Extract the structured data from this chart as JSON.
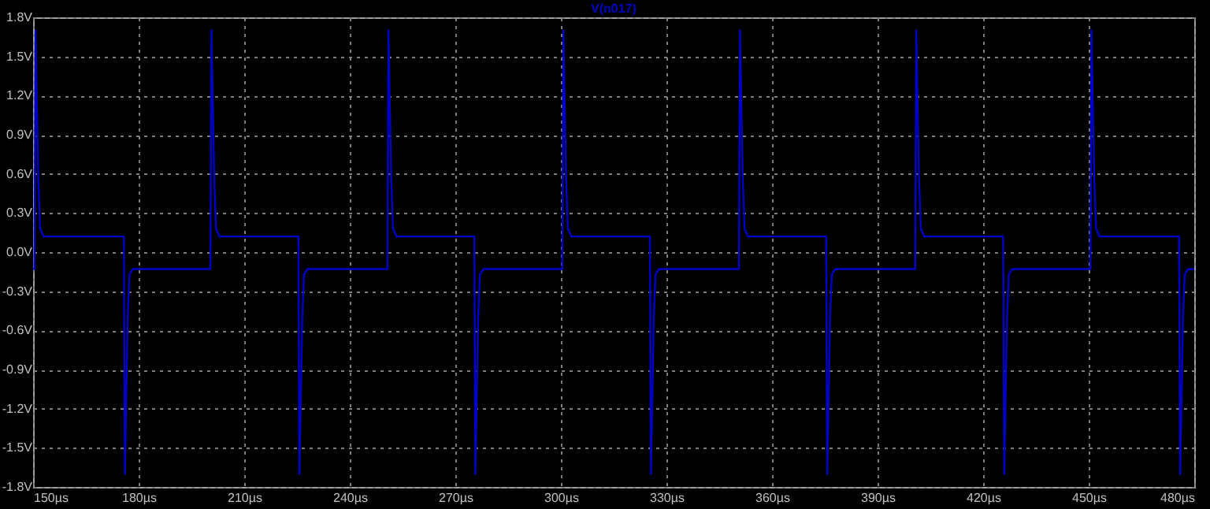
{
  "chart_data": {
    "type": "line",
    "legend": "top",
    "grid": true,
    "line_style": "solid",
    "marker": "none",
    "xlim": [
      150,
      480
    ],
    "xticks": [
      {
        "value": 150,
        "label": "150µs"
      },
      {
        "value": 180,
        "label": "180µs"
      },
      {
        "value": 210,
        "label": "210µs"
      },
      {
        "value": 240,
        "label": "240µs"
      },
      {
        "value": 270,
        "label": "270µs"
      },
      {
        "value": 300,
        "label": "300µs"
      },
      {
        "value": 330,
        "label": "330µs"
      },
      {
        "value": 360,
        "label": "360µs"
      },
      {
        "value": 390,
        "label": "390µs"
      },
      {
        "value": 420,
        "label": "420µs"
      },
      {
        "value": 450,
        "label": "450µs"
      },
      {
        "value": 480,
        "label": "480µs"
      }
    ],
    "ylim": [
      -1.8,
      1.8
    ],
    "yticks": [
      {
        "value": -1.8,
        "label": "-1.8V"
      },
      {
        "value": -1.5,
        "label": "-1.5V"
      },
      {
        "value": -1.2,
        "label": "-1.2V"
      },
      {
        "value": -0.9,
        "label": "-0.9V"
      },
      {
        "value": -0.6,
        "label": "-0.6V"
      },
      {
        "value": -0.3,
        "label": "-0.3V"
      },
      {
        "value": 0,
        "label": "0.0V"
      },
      {
        "value": 0.3,
        "label": "0.3V"
      },
      {
        "value": 0.6,
        "label": "0.6V"
      },
      {
        "value": 0.9,
        "label": "0.9V"
      },
      {
        "value": 1.2,
        "label": "1.2V"
      },
      {
        "value": 1.5,
        "label": "1.5V"
      },
      {
        "value": 1.8,
        "label": "1.8V"
      }
    ],
    "series": [
      {
        "name": "V(n017)",
        "color": "#0000c8",
        "x": [
          150,
          150.4,
          150.7,
          151.1,
          151.5,
          152,
          153,
          175.8,
          176.1,
          176.5,
          176.9,
          177.4,
          178.4,
          200.4,
          200.7,
          201.1,
          201.5,
          202,
          203,
          225.4,
          225.7,
          226.1,
          226.5,
          227,
          228,
          250.7,
          251,
          251.4,
          251.8,
          252.3,
          253.3,
          275.4,
          275.7,
          276.1,
          276.5,
          277,
          278,
          300.4,
          300.7,
          301.1,
          301.5,
          302,
          303,
          325.3,
          325.6,
          326,
          326.4,
          326.9,
          327.9,
          350.6,
          350.9,
          351.3,
          351.7,
          352.2,
          353.2,
          375.4,
          375.7,
          376.1,
          376.5,
          377,
          378,
          400.7,
          401,
          401.4,
          401.8,
          402.3,
          403.3,
          425.7,
          426,
          426.4,
          426.8,
          427.3,
          428.3,
          450.5,
          450.8,
          451.2,
          451.6,
          452.1,
          453.1,
          475.7,
          476,
          476.4,
          476.8,
          477.3,
          478.3,
          480
        ],
        "values": [
          -0.13,
          -0.13,
          1.7,
          1.1,
          0.55,
          0.18,
          0.12,
          0.12,
          -1.7,
          -1.1,
          -0.5,
          -0.17,
          -0.13,
          -0.13,
          1.7,
          1.1,
          0.55,
          0.18,
          0.12,
          0.12,
          -1.7,
          -1.1,
          -0.5,
          -0.17,
          -0.13,
          -0.13,
          1.7,
          1.1,
          0.55,
          0.18,
          0.12,
          0.12,
          -1.7,
          -1.1,
          -0.5,
          -0.17,
          -0.13,
          -0.13,
          1.7,
          1.1,
          0.55,
          0.18,
          0.12,
          0.12,
          -1.7,
          -1.1,
          -0.5,
          -0.17,
          -0.13,
          -0.13,
          1.7,
          1.1,
          0.55,
          0.18,
          0.12,
          0.12,
          -1.7,
          -1.1,
          -0.5,
          -0.17,
          -0.13,
          -0.13,
          1.7,
          1.1,
          0.55,
          0.18,
          0.12,
          0.12,
          -1.7,
          -1.1,
          -0.5,
          -0.17,
          -0.13,
          -0.13,
          1.7,
          1.1,
          0.55,
          0.18,
          0.12,
          0.12,
          -1.7,
          -1.1,
          -0.5,
          -0.17,
          -0.13,
          -0.13
        ]
      }
    ]
  }
}
